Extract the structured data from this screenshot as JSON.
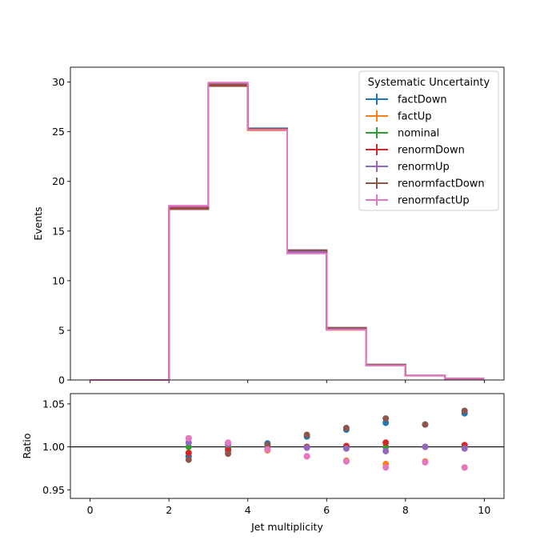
{
  "chart_data": [
    {
      "type": "step-histogram",
      "panel": "main",
      "ylabel": "Events",
      "xlim": [
        -0.5,
        10.5
      ],
      "ylim": [
        0,
        31.5
      ],
      "yticks": [
        0,
        5,
        10,
        15,
        20,
        25,
        30
      ],
      "bin_edges": [
        0,
        1,
        2,
        3,
        4,
        5,
        6,
        7,
        8,
        9,
        10
      ],
      "legend": {
        "title": "Systematic Uncertainty",
        "placement": "top-right"
      },
      "series": [
        {
          "name": "factDown",
          "color": "#1f77b4",
          "values": [
            0,
            0,
            17.35,
            29.75,
            25.35,
            13.0,
            5.25,
            1.55,
            0.45,
            0.15
          ]
        },
        {
          "name": "factUp",
          "color": "#ff7f0e",
          "values": [
            0,
            0,
            17.4,
            29.9,
            25.15,
            12.85,
            5.05,
            1.47,
            0.43,
            0.14
          ]
        },
        {
          "name": "nominal",
          "color": "#2ca02c",
          "values": [
            0,
            0,
            17.4,
            29.8,
            25.25,
            12.9,
            5.15,
            1.5,
            0.44,
            0.145
          ]
        },
        {
          "name": "renormDown",
          "color": "#d62728",
          "values": [
            0,
            0,
            17.3,
            29.7,
            25.25,
            12.9,
            5.16,
            1.51,
            0.44,
            0.145
          ]
        },
        {
          "name": "renormUp",
          "color": "#9467bd",
          "values": [
            0,
            0,
            17.48,
            29.9,
            25.25,
            12.9,
            5.15,
            1.49,
            0.44,
            0.145
          ]
        },
        {
          "name": "renormfactDown",
          "color": "#8c564b",
          "values": [
            0,
            0,
            17.2,
            29.6,
            25.3,
            13.08,
            5.27,
            1.55,
            0.45,
            0.15
          ]
        },
        {
          "name": "renormfactUp",
          "color": "#e377c2",
          "values": [
            0,
            0,
            17.55,
            29.95,
            25.2,
            12.75,
            5.07,
            1.46,
            0.43,
            0.14
          ]
        }
      ]
    },
    {
      "type": "scatter",
      "panel": "ratio",
      "xlabel": "Jet multiplicity",
      "ylabel": "Ratio",
      "xlim": [
        -0.5,
        10.5
      ],
      "ylim": [
        0.94,
        1.062
      ],
      "yticks": [
        0.95,
        1.0,
        1.05
      ],
      "ytick_labels": [
        "0.95",
        "1.00",
        "1.05"
      ],
      "xticks": [
        0,
        2,
        4,
        6,
        8,
        10
      ],
      "reference_line": 1.0,
      "x": [
        2.5,
        3.5,
        4.5,
        5.5,
        6.5,
        7.5,
        8.5,
        9.5
      ],
      "series": [
        {
          "name": "factDown",
          "color": "#1f77b4",
          "values": [
            0.989,
            0.998,
            1.004,
            1.012,
            1.02,
            1.028,
            1.026,
            1.039
          ]
        },
        {
          "name": "factUp",
          "color": "#ff7f0e",
          "values": [
            1.01,
            1.004,
            0.996,
            0.989,
            0.984,
            0.98,
            0.983,
            0.976
          ]
        },
        {
          "name": "nominal",
          "color": "#2ca02c",
          "values": [
            1.0,
            1.0,
            1.0,
            1.0,
            1.0,
            1.0,
            1.0,
            1.0
          ]
        },
        {
          "name": "renormDown",
          "color": "#d62728",
          "values": [
            0.993,
            0.996,
            1.0,
            1.0,
            1.001,
            1.005,
            1.0,
            1.002
          ]
        },
        {
          "name": "renormUp",
          "color": "#9467bd",
          "values": [
            1.005,
            1.003,
            1.0,
            0.999,
            0.998,
            0.995,
            1.0,
            0.998
          ]
        },
        {
          "name": "renormfactDown",
          "color": "#8c564b",
          "values": [
            0.985,
            0.992,
            1.002,
            1.014,
            1.022,
            1.033,
            1.026,
            1.042
          ]
        },
        {
          "name": "renormfactUp",
          "color": "#e377c2",
          "values": [
            1.01,
            1.005,
            0.997,
            0.989,
            0.983,
            0.976,
            0.982,
            0.976
          ]
        }
      ]
    }
  ]
}
